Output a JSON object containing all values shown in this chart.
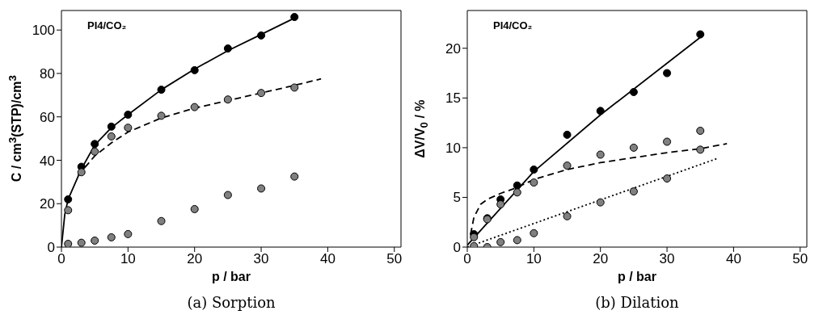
{
  "chart_data": [
    {
      "type": "scatter",
      "xlabel": "p / bar",
      "ylabel": "C / cm$^{3}$(STP)/cm$^{3}$",
      "xlim": [
        0,
        51
      ],
      "ylim": [
        0,
        109
      ],
      "xticks": [
        0,
        10,
        20,
        30,
        40,
        50
      ],
      "yticks": [
        0,
        20,
        40,
        60,
        80,
        100
      ],
      "marker": "circle",
      "grid": false,
      "legend": false,
      "annotations": [
        "PI4/CO₂",
        "(a) Sorption"
      ],
      "series": [
        {
          "color": "#000000",
          "x": [
            1,
            3,
            5,
            7.5,
            10,
            15,
            20,
            25,
            30,
            35
          ],
          "values": [
            22,
            37,
            47.5,
            55.5,
            61,
            72.5,
            81.5,
            91.5,
            97.5,
            106
          ]
        },
        {
          "color": "#808080",
          "x": [
            1,
            3,
            5,
            7.5,
            10,
            15,
            20,
            25,
            30,
            35
          ],
          "values": [
            17,
            34.5,
            44,
            51,
            55,
            60.5,
            64.5,
            68,
            71,
            73.5
          ]
        },
        {
          "color": "#808080",
          "x": [
            1,
            3,
            5,
            7.5,
            10,
            15,
            20,
            25,
            30,
            35
          ],
          "values": [
            1.5,
            2,
            3,
            4.5,
            6,
            12,
            17.5,
            24,
            27,
            32.5
          ]
        },
        {
          "type": "line",
          "color": "#000000",
          "line_style": "solid",
          "marker": "none",
          "x": [
            0,
            0.5,
            1,
            3,
            5,
            7.5,
            10,
            15,
            20,
            25,
            30,
            35
          ],
          "values": [
            0,
            15,
            22,
            36,
            47,
            55,
            61,
            72.5,
            82,
            90.5,
            98,
            105.5
          ]
        },
        {
          "type": "line",
          "color": "#000000",
          "line_style": "dashed",
          "marker": "none",
          "x": [
            2.5,
            5,
            7.5,
            10,
            15,
            20,
            25,
            30,
            35,
            39
          ],
          "values": [
            33,
            42,
            48,
            53,
            59.5,
            64,
            67.5,
            71,
            74.5,
            77.5
          ]
        }
      ]
    },
    {
      "type": "scatter",
      "xlabel": "p / bar",
      "ylabel": "ΔV/V$_{0}$ / %",
      "xlim": [
        0,
        51
      ],
      "ylim": [
        0,
        23.8
      ],
      "xticks": [
        0,
        10,
        20,
        30,
        40,
        50
      ],
      "yticks": [
        0,
        5,
        10,
        15,
        20
      ],
      "marker": "circle",
      "grid": false,
      "legend": false,
      "annotations": [
        "PI4/CO₂",
        "(b) Dilation"
      ],
      "series": [
        {
          "color": "#000000",
          "x": [
            1,
            3,
            5,
            7.5,
            10,
            15,
            20,
            25,
            30,
            35
          ],
          "values": [
            1.3,
            2.9,
            4.8,
            6.2,
            7.8,
            11.3,
            13.7,
            15.6,
            17.5,
            21.4
          ]
        },
        {
          "color": "#808080",
          "x": [
            1,
            3,
            5,
            7.5,
            10,
            15,
            20,
            25,
            30,
            35
          ],
          "values": [
            1,
            2.8,
            4.3,
            5.5,
            6.5,
            8.2,
            9.3,
            10,
            10.6,
            11.7
          ]
        },
        {
          "color": "#808080",
          "x": [
            1,
            3,
            5,
            7.5,
            10,
            15,
            20,
            25,
            30,
            35
          ],
          "values": [
            0.1,
            0,
            0.5,
            0.7,
            1.4,
            3.1,
            4.5,
            5.6,
            6.9,
            9.8
          ]
        },
        {
          "type": "line",
          "color": "#000000",
          "line_style": "solid",
          "marker": "none",
          "x": [
            0,
            10,
            20,
            35
          ],
          "values": [
            0.2,
            7.6,
            13.3,
            21.1
          ]
        },
        {
          "type": "line",
          "color": "#000000",
          "line_style": "dashed",
          "marker": "none",
          "x": [
            0.5,
            1,
            2,
            3,
            5,
            7.5,
            10,
            15,
            20,
            25,
            30,
            35,
            39
          ],
          "values": [
            1.3,
            3,
            4.3,
            4.8,
            5.4,
            6,
            6.8,
            7.8,
            8.5,
            9,
            9.5,
            9.9,
            10.4
          ]
        },
        {
          "type": "line",
          "color": "#000000",
          "line_style": "dotted",
          "marker": "none",
          "x": [
            0,
            37.5
          ],
          "values": [
            0,
            8.9
          ]
        }
      ]
    }
  ]
}
